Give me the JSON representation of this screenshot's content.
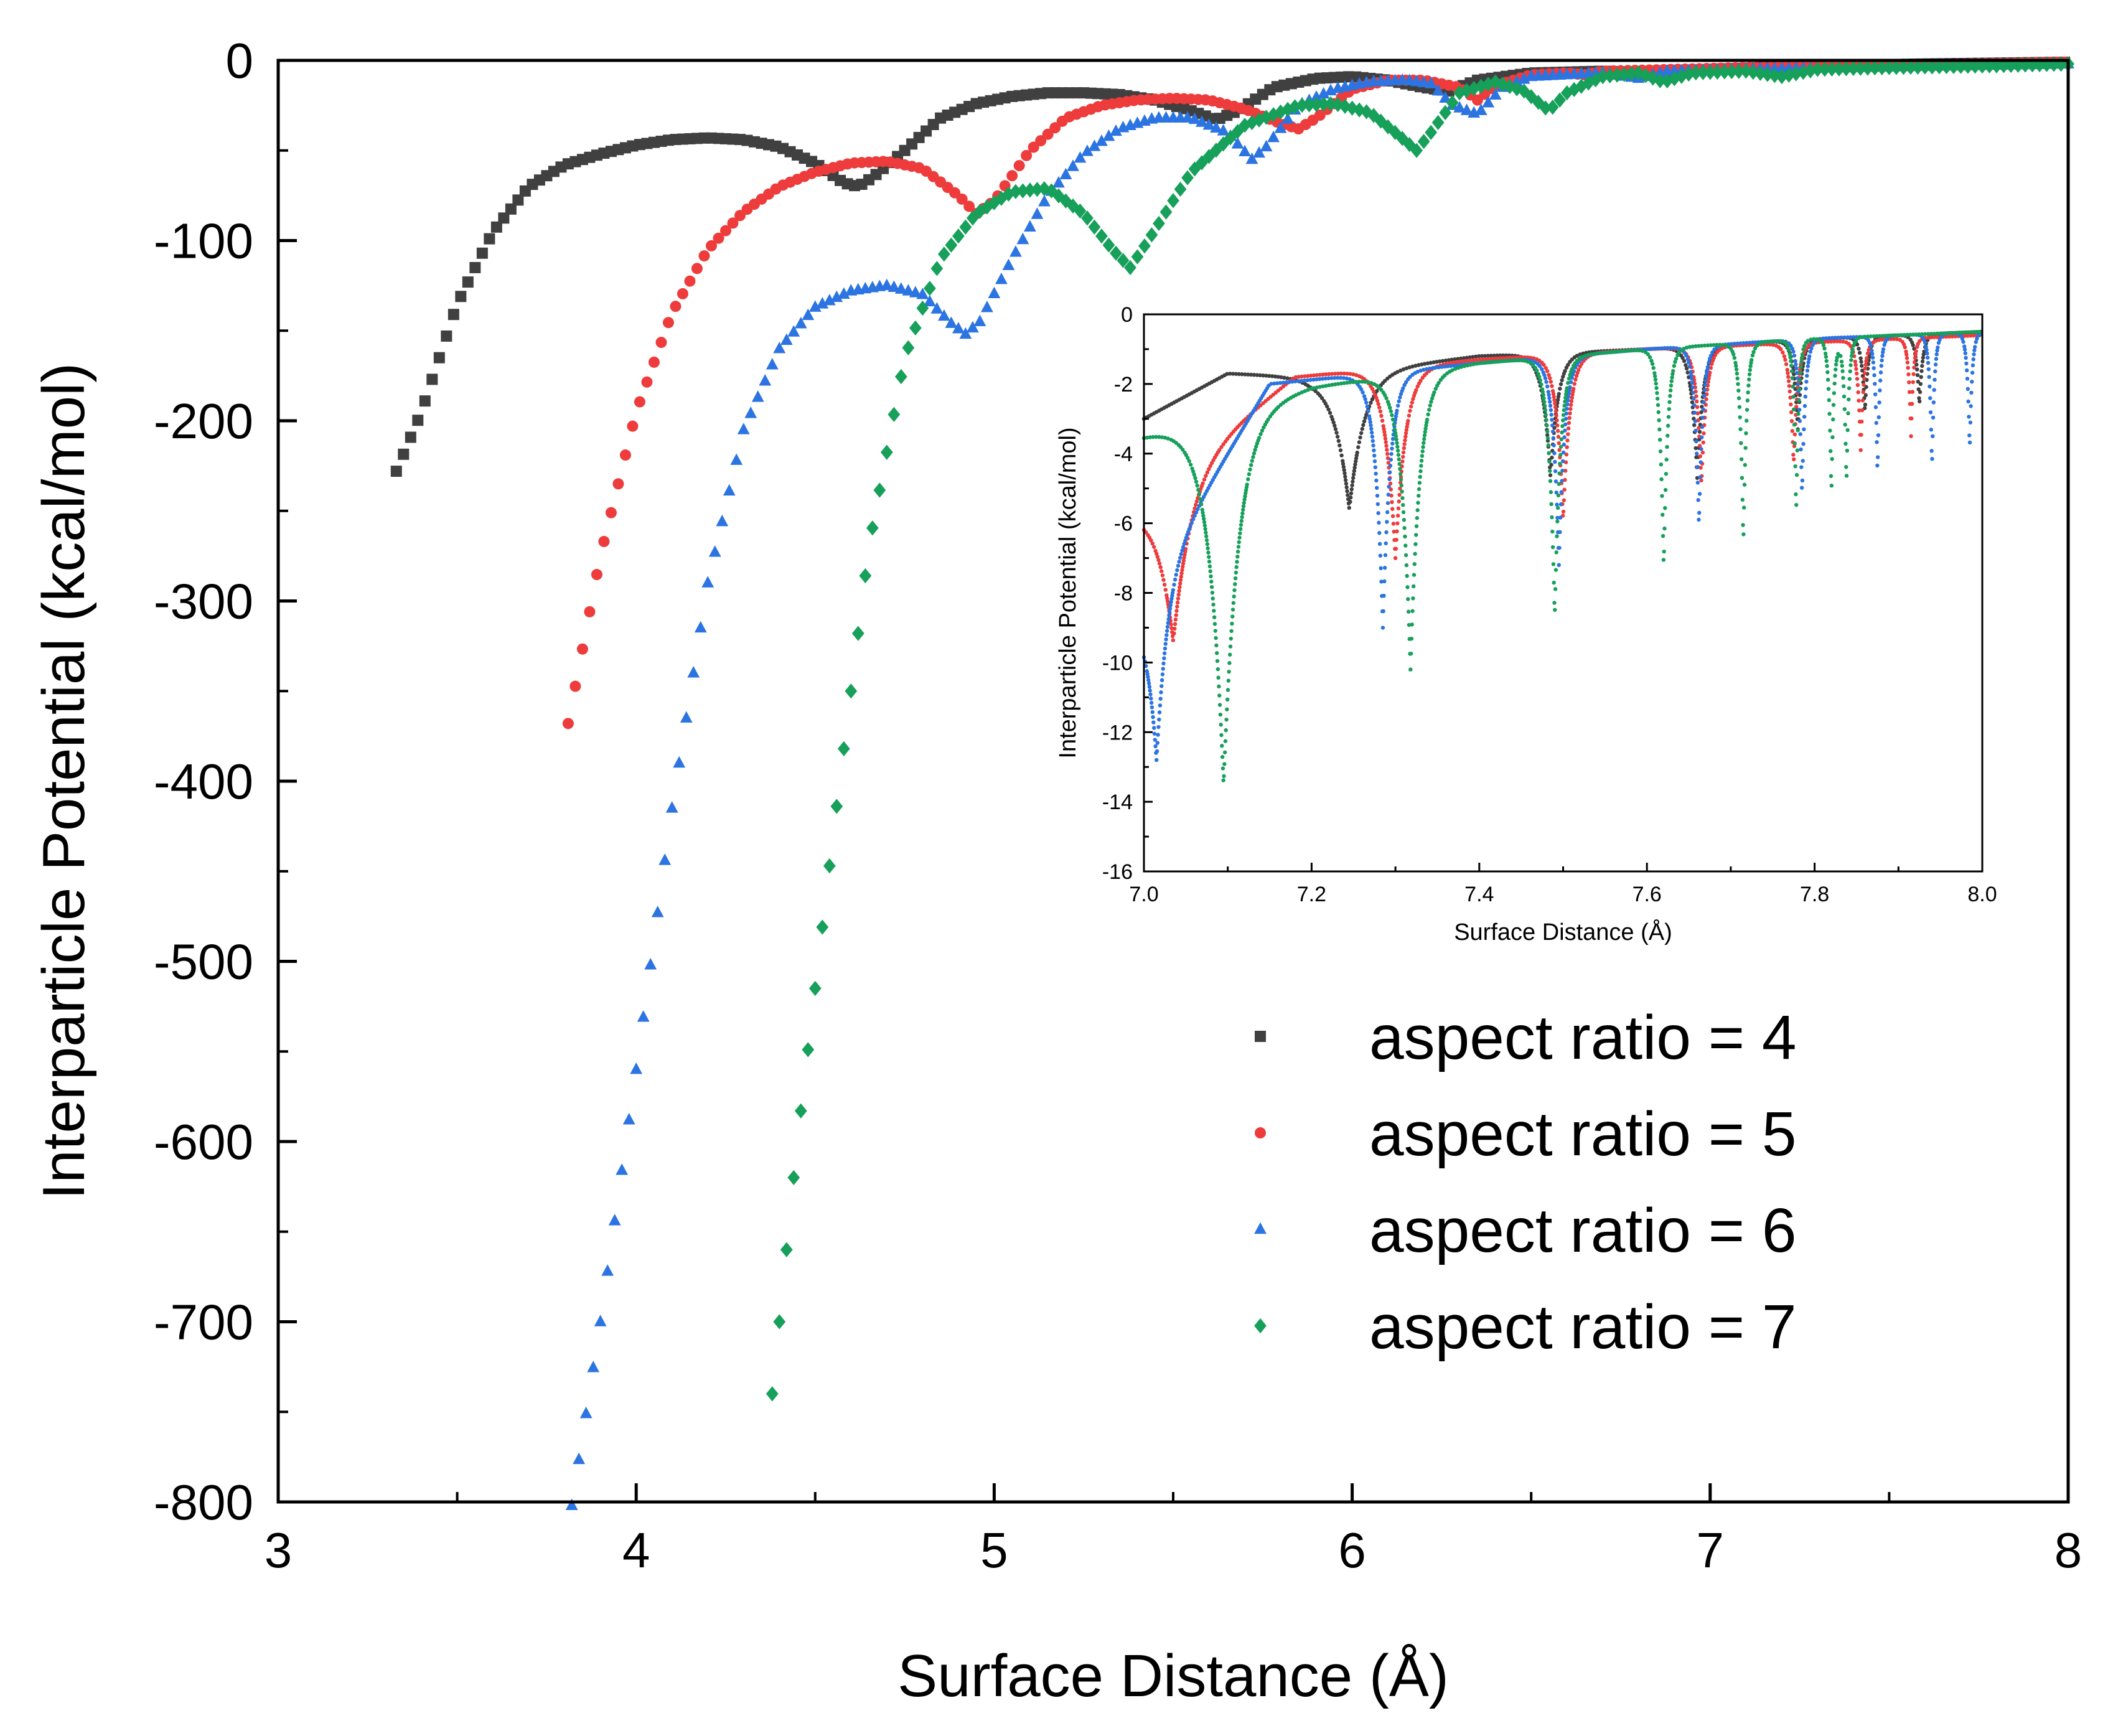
{
  "chart_data": {
    "main": {
      "type": "scatter",
      "xlabel": "Surface Distance (Å)",
      "ylabel": "Interparticle Potential (kcal/mol)",
      "xlim": [
        3,
        8
      ],
      "ylim": [
        -800,
        0
      ],
      "xticks": [
        3,
        4,
        5,
        6,
        7,
        8
      ],
      "xtick_labels": [
        "3",
        "4",
        "5",
        "6",
        "7",
        "8"
      ],
      "yticks": [
        0,
        -100,
        -200,
        -300,
        -400,
        -500,
        -600,
        -700,
        -800
      ],
      "ytick_labels": [
        "0",
        "-100",
        "-200",
        "-300",
        "-400",
        "-500",
        "-600",
        "-700",
        "-800"
      ],
      "legend_position": "lower-right",
      "series": [
        {
          "name": "aspect ratio = 4",
          "color": "#404040",
          "marker": "square",
          "xrange": [
            3.33,
            8.0
          ],
          "step": 0.02,
          "points": [
            [
              3.33,
              -228
            ],
            [
              3.4,
              -195
            ],
            [
              3.5,
              -135
            ],
            [
              3.6,
              -95
            ],
            [
              3.7,
              -70
            ],
            [
              3.8,
              -58
            ],
            [
              3.9,
              -52
            ],
            [
              4.0,
              -47
            ],
            [
              4.1,
              -44
            ],
            [
              4.2,
              -43
            ],
            [
              4.3,
              -44
            ],
            [
              4.4,
              -48
            ],
            [
              4.5,
              -57
            ],
            [
              4.58,
              -68
            ],
            [
              4.62,
              -70
            ],
            [
              4.66,
              -65
            ],
            [
              4.75,
              -50
            ],
            [
              4.85,
              -32
            ],
            [
              4.95,
              -24
            ],
            [
              5.05,
              -20
            ],
            [
              5.15,
              -18
            ],
            [
              5.25,
              -18
            ],
            [
              5.35,
              -19
            ],
            [
              5.45,
              -22
            ],
            [
              5.55,
              -28
            ],
            [
              5.62,
              -33
            ],
            [
              5.68,
              -28
            ],
            [
              5.78,
              -15
            ],
            [
              5.9,
              -10
            ],
            [
              6.0,
              -9
            ],
            [
              6.1,
              -11
            ],
            [
              6.2,
              -15
            ],
            [
              6.27,
              -17
            ],
            [
              6.35,
              -11
            ],
            [
              6.5,
              -7
            ],
            [
              6.7,
              -6
            ],
            [
              6.85,
              -7
            ],
            [
              7.0,
              -5
            ],
            [
              7.3,
              -3
            ],
            [
              7.6,
              -2
            ],
            [
              8.0,
              -1
            ]
          ]
        },
        {
          "name": "aspect ratio = 5",
          "color": "#ee3b3b",
          "marker": "circle",
          "xrange": [
            3.81,
            8.0
          ],
          "step": 0.02,
          "points": [
            [
              3.81,
              -368
            ],
            [
              3.9,
              -275
            ],
            [
              4.0,
              -195
            ],
            [
              4.1,
              -140
            ],
            [
              4.2,
              -105
            ],
            [
              4.3,
              -84
            ],
            [
              4.4,
              -70
            ],
            [
              4.5,
              -62
            ],
            [
              4.6,
              -57
            ],
            [
              4.7,
              -56
            ],
            [
              4.8,
              -60
            ],
            [
              4.9,
              -75
            ],
            [
              4.95,
              -85
            ],
            [
              5.0,
              -78
            ],
            [
              5.1,
              -50
            ],
            [
              5.2,
              -32
            ],
            [
              5.3,
              -25
            ],
            [
              5.4,
              -22
            ],
            [
              5.5,
              -21
            ],
            [
              5.6,
              -22
            ],
            [
              5.7,
              -27
            ],
            [
              5.8,
              -35
            ],
            [
              5.85,
              -38
            ],
            [
              5.9,
              -32
            ],
            [
              6.0,
              -16
            ],
            [
              6.1,
              -11
            ],
            [
              6.2,
              -11
            ],
            [
              6.3,
              -15
            ],
            [
              6.35,
              -22
            ],
            [
              6.4,
              -14
            ],
            [
              6.5,
              -8
            ],
            [
              6.6,
              -7
            ],
            [
              6.65,
              -8
            ],
            [
              6.7,
              -6
            ],
            [
              6.9,
              -5
            ],
            [
              7.1,
              -4
            ],
            [
              7.4,
              -3
            ],
            [
              7.7,
              -2
            ],
            [
              8.0,
              -1
            ]
          ]
        },
        {
          "name": "aspect ratio = 6",
          "color": "#2b74e2",
          "marker": "triangle",
          "xrange": [
            3.82,
            8.0
          ],
          "step": 0.02,
          "points": [
            [
              3.82,
              -802
            ],
            [
              3.9,
              -700
            ],
            [
              4.0,
              -560
            ],
            [
              4.1,
              -415
            ],
            [
              4.2,
              -290
            ],
            [
              4.3,
              -205
            ],
            [
              4.4,
              -160
            ],
            [
              4.5,
              -137
            ],
            [
              4.6,
              -128
            ],
            [
              4.7,
              -125
            ],
            [
              4.8,
              -130
            ],
            [
              4.88,
              -146
            ],
            [
              4.92,
              -152
            ],
            [
              4.96,
              -145
            ],
            [
              5.05,
              -110
            ],
            [
              5.15,
              -75
            ],
            [
              5.25,
              -52
            ],
            [
              5.35,
              -38
            ],
            [
              5.45,
              -32
            ],
            [
              5.55,
              -32
            ],
            [
              5.65,
              -40
            ],
            [
              5.72,
              -55
            ],
            [
              5.76,
              -48
            ],
            [
              5.85,
              -25
            ],
            [
              5.95,
              -16
            ],
            [
              6.05,
              -12
            ],
            [
              6.15,
              -11
            ],
            [
              6.22,
              -13
            ],
            [
              6.28,
              -25
            ],
            [
              6.35,
              -30
            ],
            [
              6.42,
              -15
            ],
            [
              6.5,
              -9
            ],
            [
              6.6,
              -8
            ],
            [
              6.7,
              -7
            ],
            [
              6.8,
              -10
            ],
            [
              6.88,
              -6
            ],
            [
              7.1,
              -5
            ],
            [
              7.4,
              -4
            ],
            [
              7.7,
              -3
            ],
            [
              8.0,
              -2
            ]
          ]
        },
        {
          "name": "aspect ratio = 7",
          "color": "#16a05a",
          "marker": "diamond",
          "xrange": [
            4.38,
            8.0
          ],
          "step": 0.02,
          "points": [
            [
              4.38,
              -740
            ],
            [
              4.45,
              -600
            ],
            [
              4.55,
              -430
            ],
            [
              4.65,
              -270
            ],
            [
              4.75,
              -165
            ],
            [
              4.85,
              -110
            ],
            [
              4.95,
              -85
            ],
            [
              5.05,
              -73
            ],
            [
              5.15,
              -71
            ],
            [
              5.25,
              -85
            ],
            [
              5.33,
              -105
            ],
            [
              5.38,
              -115
            ],
            [
              5.43,
              -100
            ],
            [
              5.55,
              -62
            ],
            [
              5.7,
              -36
            ],
            [
              5.85,
              -25
            ],
            [
              5.95,
              -24
            ],
            [
              6.05,
              -29
            ],
            [
              6.12,
              -40
            ],
            [
              6.18,
              -50
            ],
            [
              6.22,
              -40
            ],
            [
              6.3,
              -18
            ],
            [
              6.4,
              -12
            ],
            [
              6.48,
              -17
            ],
            [
              6.55,
              -28
            ],
            [
              6.6,
              -18
            ],
            [
              6.7,
              -9
            ],
            [
              6.8,
              -7
            ],
            [
              6.87,
              -12
            ],
            [
              6.95,
              -7
            ],
            [
              7.1,
              -6
            ],
            [
              7.2,
              -9
            ],
            [
              7.3,
              -5
            ],
            [
              7.5,
              -4
            ],
            [
              7.8,
              -3
            ],
            [
              8.0,
              -2
            ]
          ]
        }
      ]
    },
    "inset": {
      "type": "scatter",
      "xlabel": "Surface Distance (Å)",
      "ylabel": "Interparticle Potential (kcal/mol)",
      "xlim": [
        7.0,
        8.0
      ],
      "ylim": [
        -16,
        0
      ],
      "xticks": [
        7.0,
        7.2,
        7.4,
        7.6,
        7.8,
        8.0
      ],
      "xtick_labels": [
        "7.0",
        "7.2",
        "7.4",
        "7.6",
        "7.8",
        "8.0"
      ],
      "yticks": [
        0,
        -2,
        -4,
        -6,
        -8,
        -10,
        -12,
        -14,
        -16
      ],
      "ytick_labels": [
        "0",
        "-2",
        "-4",
        "-6",
        "-8",
        "-10",
        "-12",
        "-14",
        "-16"
      ],
      "series": [
        {
          "name": "aspect ratio = 4",
          "color": "#404040",
          "baseline": [
            [
              7.0,
              -3.0
            ],
            [
              7.1,
              -1.7
            ],
            [
              7.2,
              -1.8
            ],
            [
              7.4,
              -1.2
            ],
            [
              7.6,
              -1.0
            ],
            [
              7.8,
              -0.7
            ],
            [
              8.0,
              -0.5
            ]
          ],
          "dips": [
            [
              7.245,
              -5.6,
              0.018
            ],
            [
              7.485,
              -4.7,
              0.009
            ],
            [
              7.66,
              -4.7,
              0.007
            ],
            [
              7.78,
              -3.3,
              0.005
            ],
            [
              7.86,
              -2.8,
              0.004
            ],
            [
              7.925,
              -2.6,
              0.004
            ]
          ]
        },
        {
          "name": "aspect ratio = 5",
          "color": "#ee3b3b",
          "baseline": [
            [
              7.0,
              -5.2
            ],
            [
              7.18,
              -1.8
            ],
            [
              7.4,
              -1.3
            ],
            [
              7.6,
              -1.0
            ],
            [
              7.8,
              -0.8
            ],
            [
              8.0,
              -0.6
            ]
          ],
          "dips": [
            [
              7.035,
              -9.4,
              0.022
            ],
            [
              7.3,
              -7.0,
              0.012
            ],
            [
              7.5,
              -5.9,
              0.008
            ],
            [
              7.665,
              -4.9,
              0.006
            ],
            [
              7.775,
              -4.3,
              0.005
            ],
            [
              7.855,
              -3.9,
              0.004
            ],
            [
              7.915,
              -3.5,
              0.003
            ]
          ]
        },
        {
          "name": "aspect ratio = 6",
          "color": "#2b74e2",
          "baseline": [
            [
              7.0,
              -8.0
            ],
            [
              7.15,
              -2.0
            ],
            [
              7.4,
              -1.4
            ],
            [
              7.6,
              -1.0
            ],
            [
              7.8,
              -0.7
            ],
            [
              8.0,
              -0.5
            ]
          ],
          "dips": [
            [
              7.015,
              -12.8,
              0.014
            ],
            [
              7.285,
              -9.0,
              0.009
            ],
            [
              7.495,
              -7.2,
              0.007
            ],
            [
              7.662,
              -6.1,
              0.005
            ],
            [
              7.785,
              -5.2,
              0.004
            ],
            [
              7.875,
              -4.6,
              0.003
            ],
            [
              7.94,
              -4.4,
              0.003
            ],
            [
              7.985,
              -3.9,
              0.003
            ]
          ]
        },
        {
          "name": "aspect ratio = 7",
          "color": "#16a05a",
          "baseline": [
            [
              7.0,
              -3.5
            ],
            [
              7.2,
              -2.1
            ],
            [
              7.4,
              -1.4
            ],
            [
              7.6,
              -1.0
            ],
            [
              7.8,
              -0.7
            ],
            [
              8.0,
              -0.5
            ]
          ],
          "dips": [
            [
              7.095,
              -13.5,
              0.018
            ],
            [
              7.318,
              -10.2,
              0.011
            ],
            [
              7.49,
              -8.7,
              0.007
            ],
            [
              7.62,
              -7.3,
              0.005
            ],
            [
              7.715,
              -6.6,
              0.004
            ],
            [
              7.778,
              -5.8,
              0.003
            ],
            [
              7.82,
              -5.2,
              0.003
            ],
            [
              7.838,
              -4.9,
              0.003
            ]
          ]
        }
      ]
    }
  }
}
